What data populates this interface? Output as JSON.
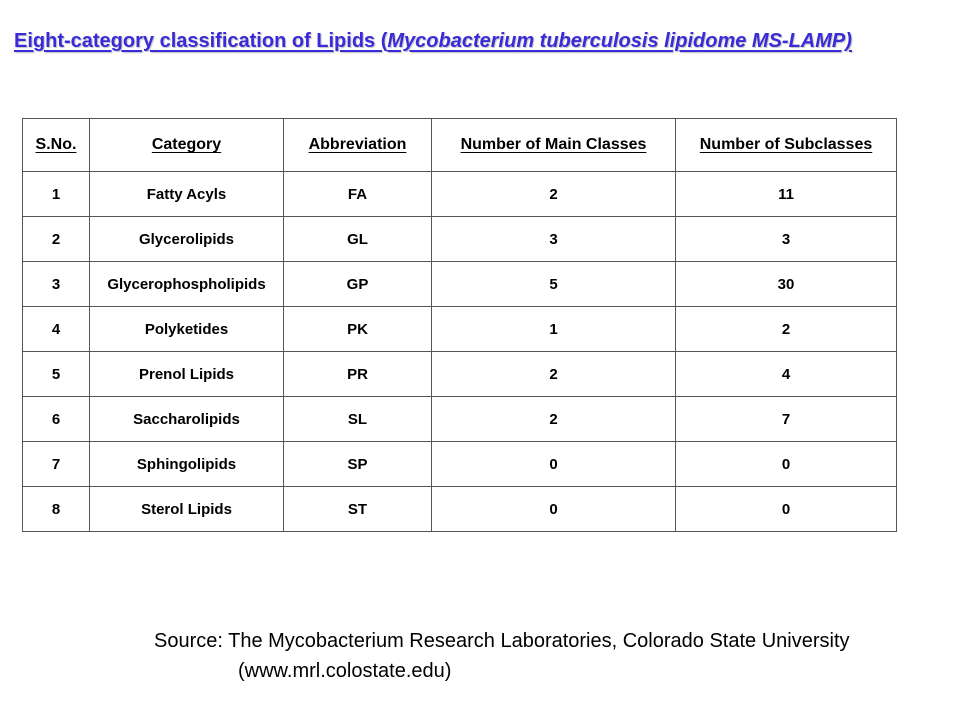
{
  "title": {
    "main": "Eight-category classification of Lipids (",
    "italic": "Mycobacterium tuberculosis lipidome MS-LAMP)"
  },
  "table": {
    "headers": [
      "S.No.",
      "Category",
      "Abbreviation",
      "Number of Main Classes",
      "Number of Subclasses"
    ],
    "rows": [
      [
        "1",
        "Fatty Acyls",
        "FA",
        "2",
        "11"
      ],
      [
        "2",
        "Glycerolipids",
        "GL",
        "3",
        "3"
      ],
      [
        "3",
        "Glycerophospholipids",
        "GP",
        "5",
        "30"
      ],
      [
        "4",
        "Polyketides",
        "PK",
        "1",
        "2"
      ],
      [
        "5",
        "Prenol Lipids",
        "PR",
        "2",
        "4"
      ],
      [
        "6",
        "Saccharolipids",
        "SL",
        "2",
        "7"
      ],
      [
        "7",
        "Sphingolipids",
        "SP",
        "0",
        "0"
      ],
      [
        "8",
        "Sterol Lipids",
        "ST",
        "0",
        "0"
      ]
    ]
  },
  "source": {
    "line1": "Source: The Mycobacterium Research Laboratories, Colorado State University",
    "line2": "(www.mrl.colostate.edu)"
  },
  "colors": {
    "title": "#3a2bd9",
    "border": "#555555"
  }
}
